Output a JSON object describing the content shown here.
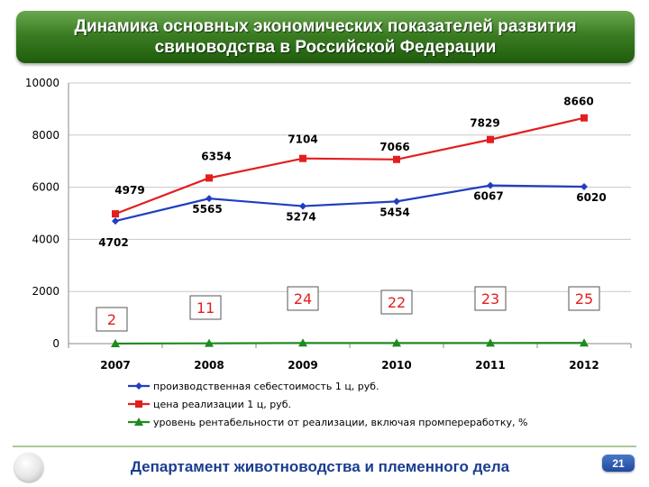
{
  "header": {
    "title": "Динамика основных экономических показателей развития свиноводства в Российской Федерации"
  },
  "footer": {
    "department": "Департамент животноводства и племенного дела",
    "page_number": "21"
  },
  "chart_data": {
    "type": "line",
    "categories": [
      "2007",
      "2008",
      "2009",
      "2010",
      "2011",
      "2012"
    ],
    "ylim": [
      0,
      10000
    ],
    "yticks": [
      "0",
      "2000",
      "4000",
      "6000",
      "8000",
      "10000"
    ],
    "grid": true,
    "legend_position": "bottom",
    "series": [
      {
        "name": "производственная себестоимость 1 ц, руб.",
        "values": [
          4702,
          5565,
          5274,
          5454,
          6067,
          6020
        ],
        "labels": [
          "4702",
          "5565",
          "5274",
          "5454",
          "6067",
          "6020"
        ],
        "color": "#1f3fbf",
        "marker": "diamond"
      },
      {
        "name": "цена реализации 1 ц, руб.",
        "values": [
          4979,
          6354,
          7104,
          7066,
          7829,
          8660
        ],
        "labels": [
          "4979",
          "6354",
          "7104",
          "7066",
          "7829",
          "8660"
        ],
        "color": "#e31e1e",
        "marker": "square"
      },
      {
        "name": "уровень рентабельности от реализации, включая промпереработку, %",
        "values": [
          2,
          11,
          24,
          22,
          23,
          25
        ],
        "labels": [
          "2",
          "11",
          "24",
          "22",
          "23",
          "25"
        ],
        "color": "#1f8a1f",
        "marker": "triangle"
      }
    ]
  }
}
